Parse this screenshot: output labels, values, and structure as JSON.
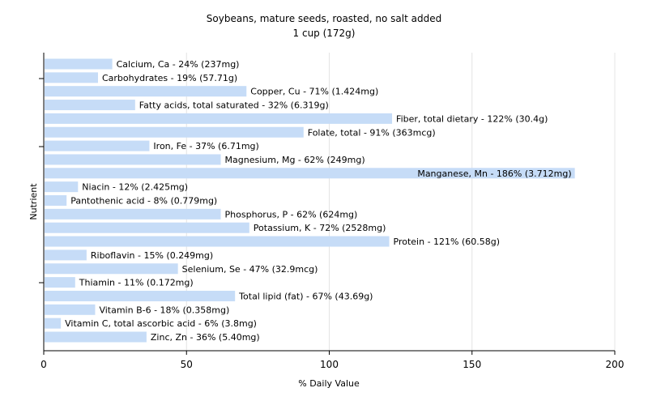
{
  "chart_data": {
    "type": "bar",
    "orientation": "horizontal",
    "title": "Soybeans, mature seeds, roasted, no salt added",
    "subtitle": "1 cup (172g)",
    "xlabel": "% Daily Value",
    "ylabel": "Nutrient",
    "xlim": [
      0,
      200
    ],
    "xticks": [
      "0",
      "50",
      "100",
      "150",
      "200"
    ],
    "grid": true,
    "bar_color": "#c6dcf7",
    "categories": [
      "Calcium, Ca",
      "Carbohydrates",
      "Copper, Cu",
      "Fatty acids, total saturated",
      "Fiber, total dietary",
      "Folate, total",
      "Iron, Fe",
      "Magnesium, Mg",
      "Manganese, Mn",
      "Niacin",
      "Pantothenic acid",
      "Phosphorus, P",
      "Potassium, K",
      "Protein",
      "Riboflavin",
      "Selenium, Se",
      "Thiamin",
      "Total lipid (fat)",
      "Vitamin B-6",
      "Vitamin C, total ascorbic acid",
      "Zinc, Zn"
    ],
    "values": [
      24,
      19,
      71,
      32,
      122,
      91,
      37,
      62,
      186,
      12,
      8,
      62,
      72,
      121,
      15,
      47,
      11,
      67,
      18,
      6,
      36
    ],
    "labels": [
      "Calcium, Ca - 24% (237mg)",
      "Carbohydrates - 19% (57.71g)",
      "Copper, Cu - 71% (1.424mg)",
      "Fatty acids, total saturated - 32% (6.319g)",
      "Fiber, total dietary - 122% (30.4g)",
      "Folate, total - 91% (363mcg)",
      "Iron, Fe - 37% (6.71mg)",
      "Magnesium, Mg - 62% (249mg)",
      "Manganese, Mn - 186% (3.712mg)",
      "Niacin - 12% (2.425mg)",
      "Pantothenic acid - 8% (0.779mg)",
      "Phosphorus, P - 62% (624mg)",
      "Potassium, K - 72% (2528mg)",
      "Protein - 121% (60.58g)",
      "Riboflavin - 15% (0.249mg)",
      "Selenium, Se - 47% (32.9mcg)",
      "Thiamin - 11% (0.172mg)",
      "Total lipid (fat) - 67% (43.69g)",
      "Vitamin B-6 - 18% (0.358mg)",
      "Vitamin C, total ascorbic acid - 6% (3.8mg)",
      "Zinc, Zn - 36% (5.40mg)"
    ]
  }
}
